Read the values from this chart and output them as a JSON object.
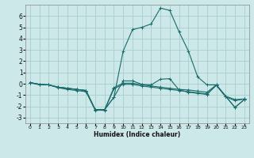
{
  "xlabel": "Humidex (Indice chaleur)",
  "ylabel": "",
  "background_color": "#cce8e8",
  "grid_color": "#aacccc",
  "line_color": "#1a6b6b",
  "xlim": [
    -0.5,
    23.5
  ],
  "ylim": [
    -3.5,
    7.0
  ],
  "xticks": [
    0,
    1,
    2,
    3,
    4,
    5,
    6,
    7,
    8,
    9,
    10,
    11,
    12,
    13,
    14,
    15,
    16,
    17,
    18,
    19,
    20,
    21,
    22,
    23
  ],
  "yticks": [
    -3,
    -2,
    -1,
    0,
    1,
    2,
    3,
    4,
    5,
    6
  ],
  "lines": [
    {
      "x": [
        0,
        1,
        2,
        3,
        4,
        5,
        6,
        7,
        8,
        9,
        10,
        11,
        12,
        13,
        14,
        15,
        16,
        17,
        18,
        19,
        20,
        21,
        22,
        23
      ],
      "y": [
        0.1,
        -0.1,
        -0.1,
        -0.3,
        -0.4,
        -0.5,
        -0.6,
        -2.3,
        -2.3,
        -1.2,
        2.9,
        4.8,
        5.0,
        5.3,
        6.7,
        6.5,
        4.6,
        2.9,
        0.6,
        -0.1,
        -0.1,
        -1.1,
        -2.1,
        -1.4
      ]
    },
    {
      "x": [
        0,
        1,
        2,
        3,
        4,
        5,
        6,
        7,
        8,
        9,
        10,
        11,
        12,
        13,
        14,
        15,
        16,
        17,
        18,
        19,
        20,
        21,
        22,
        23
      ],
      "y": [
        0.1,
        -0.05,
        -0.1,
        -0.3,
        -0.4,
        -0.5,
        -0.6,
        -2.3,
        -2.3,
        -0.35,
        0.05,
        0.05,
        -0.1,
        -0.2,
        -0.3,
        -0.4,
        -0.5,
        -0.55,
        -0.65,
        -0.75,
        -0.1,
        -1.1,
        -1.4,
        -1.35
      ]
    },
    {
      "x": [
        0,
        1,
        2,
        3,
        4,
        5,
        6,
        7,
        8,
        9,
        10,
        11,
        12,
        13,
        14,
        15,
        16,
        17,
        18,
        19,
        20,
        21,
        22,
        23
      ],
      "y": [
        0.1,
        -0.05,
        -0.1,
        -0.35,
        -0.5,
        -0.6,
        -0.7,
        -2.35,
        -2.35,
        -0.45,
        -0.05,
        -0.05,
        -0.2,
        -0.3,
        -0.4,
        -0.5,
        -0.6,
        -0.7,
        -0.8,
        -0.9,
        -0.15,
        -1.15,
        -1.5,
        -1.35
      ]
    },
    {
      "x": [
        0,
        1,
        2,
        3,
        4,
        5,
        6,
        7,
        8,
        9,
        10,
        11,
        12,
        13,
        14,
        15,
        16,
        17,
        18,
        19,
        20,
        21,
        22,
        23
      ],
      "y": [
        0.1,
        -0.05,
        -0.1,
        -0.3,
        -0.4,
        -0.5,
        -0.6,
        -2.3,
        -2.3,
        -1.2,
        0.25,
        0.25,
        -0.05,
        -0.1,
        0.4,
        0.45,
        -0.55,
        -0.75,
        -0.85,
        -0.95,
        -0.1,
        -1.1,
        -2.1,
        -1.4
      ]
    }
  ]
}
